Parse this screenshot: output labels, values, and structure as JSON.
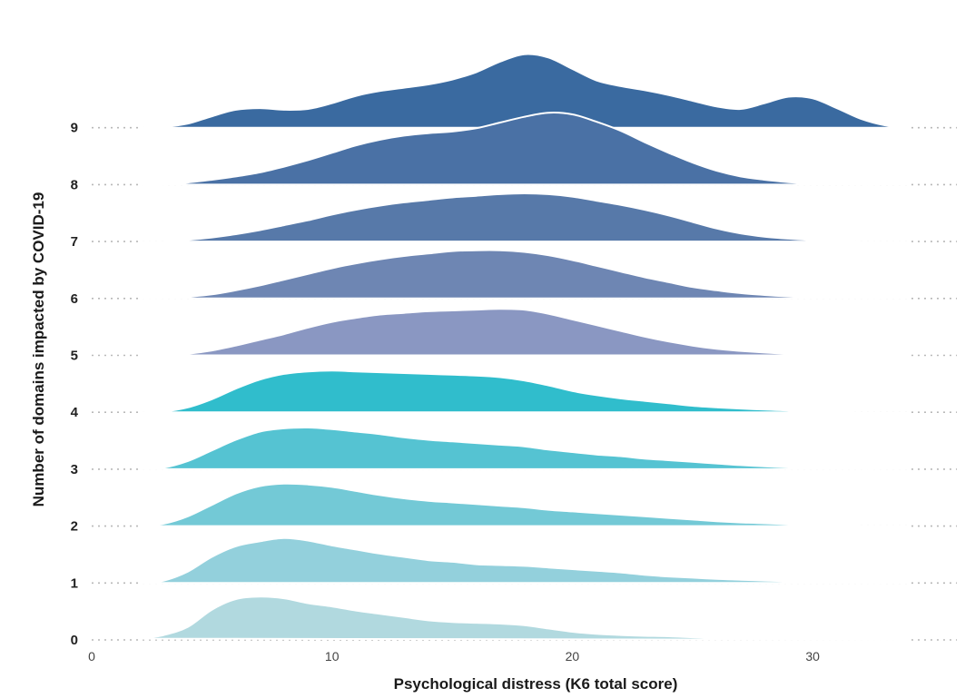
{
  "chart_data": {
    "type": "ridgeline",
    "title": "",
    "xlabel": "Psychological distress (K6 total score)",
    "ylabel": "Number of domains impacted by COVID-19",
    "xlim": [
      0,
      36
    ],
    "x_ticks": [
      0,
      10,
      20,
      30
    ],
    "grid": false,
    "legend": "none",
    "x": [
      2,
      3,
      4,
      5,
      6,
      7,
      8,
      9,
      10,
      11,
      12,
      13,
      14,
      15,
      16,
      17,
      18,
      19,
      20,
      21,
      22,
      23,
      24,
      25,
      26,
      27,
      28,
      29,
      30,
      31,
      32,
      33,
      34
    ],
    "series": [
      {
        "name": "0",
        "color": "#b1d9df",
        "values": [
          0.15,
          0.6,
          1.6,
          3.7,
          5.0,
          5.3,
          5.1,
          4.5,
          4.1,
          3.6,
          3.2,
          2.8,
          2.4,
          2.2,
          2.1,
          2.0,
          1.8,
          1.4,
          1.0,
          0.75,
          0.6,
          0.5,
          0.45,
          0.32,
          0.22,
          0.12,
          0.08,
          0.12,
          0.15,
          0.1,
          0.05,
          0.02,
          0
        ]
      },
      {
        "name": "1",
        "color": "#93d0dc",
        "values": [
          0,
          0.3,
          1.4,
          3.2,
          4.5,
          5.1,
          5.5,
          5.2,
          4.6,
          4.1,
          3.6,
          3.2,
          2.8,
          2.6,
          2.3,
          2.2,
          2.1,
          1.9,
          1.7,
          1.5,
          1.3,
          1.0,
          0.8,
          0.65,
          0.5,
          0.4,
          0.3,
          0.2,
          0.12,
          0.06,
          0,
          0,
          0
        ]
      },
      {
        "name": "2",
        "color": "#73c9d6",
        "values": [
          0,
          0.3,
          1.2,
          2.6,
          4.0,
          4.9,
          5.2,
          5.1,
          4.8,
          4.3,
          3.8,
          3.4,
          3.1,
          2.9,
          2.7,
          2.5,
          2.3,
          2.0,
          1.8,
          1.6,
          1.4,
          1.2,
          1.0,
          0.8,
          0.6,
          0.45,
          0.35,
          0.22,
          0.12,
          0.05,
          0,
          0,
          0
        ]
      },
      {
        "name": "3",
        "color": "#55c3d2",
        "values": [
          0,
          0.2,
          1.0,
          2.3,
          3.6,
          4.6,
          5.0,
          5.1,
          4.9,
          4.6,
          4.3,
          3.9,
          3.6,
          3.4,
          3.2,
          3.0,
          2.8,
          2.4,
          2.1,
          1.8,
          1.6,
          1.3,
          1.1,
          0.9,
          0.7,
          0.5,
          0.35,
          0.22,
          0.12,
          0.05,
          0,
          0,
          0
        ]
      },
      {
        "name": "4",
        "color": "#30bdcc",
        "values": [
          0,
          0.1,
          0.6,
          1.6,
          2.9,
          4.0,
          4.7,
          5.0,
          5.1,
          5.0,
          4.9,
          4.8,
          4.7,
          4.6,
          4.5,
          4.3,
          3.9,
          3.3,
          2.6,
          2.1,
          1.7,
          1.4,
          1.1,
          0.8,
          0.6,
          0.45,
          0.32,
          0.22,
          0.12,
          0.05,
          0,
          0,
          0
        ]
      },
      {
        "name": "5",
        "color": "#8a97c2",
        "values": [
          0,
          0,
          0.2,
          0.6,
          1.2,
          1.9,
          2.6,
          3.4,
          4.1,
          4.6,
          5.0,
          5.2,
          5.4,
          5.5,
          5.6,
          5.7,
          5.6,
          5.1,
          4.4,
          3.7,
          3.0,
          2.3,
          1.7,
          1.2,
          0.8,
          0.55,
          0.35,
          0.2,
          0.1,
          0.05,
          0,
          0,
          0
        ]
      },
      {
        "name": "6",
        "color": "#6e86b3",
        "values": [
          0,
          0,
          0.2,
          0.5,
          1.0,
          1.6,
          2.3,
          3.0,
          3.7,
          4.3,
          4.8,
          5.2,
          5.5,
          5.8,
          5.9,
          5.9,
          5.7,
          5.3,
          4.7,
          4.0,
          3.3,
          2.6,
          2.0,
          1.4,
          1.0,
          0.65,
          0.42,
          0.25,
          0.12,
          0.05,
          0,
          0,
          0
        ]
      },
      {
        "name": "7",
        "color": "#5779a9",
        "values": [
          0,
          0,
          0.2,
          0.5,
          0.9,
          1.4,
          2.0,
          2.6,
          3.3,
          3.9,
          4.4,
          4.8,
          5.1,
          5.4,
          5.6,
          5.8,
          5.9,
          5.8,
          5.5,
          5.0,
          4.5,
          3.9,
          3.2,
          2.4,
          1.6,
          1.0,
          0.6,
          0.35,
          0.18,
          0.08,
          0,
          0,
          0
        ]
      },
      {
        "name": "8",
        "color": "#4a71a5",
        "values": [
          0,
          0,
          0.25,
          0.6,
          1.0,
          1.5,
          2.2,
          3.0,
          3.9,
          4.8,
          5.5,
          6.0,
          6.3,
          6.5,
          6.9,
          7.6,
          8.3,
          8.8,
          8.6,
          7.7,
          6.6,
          5.2,
          3.9,
          2.7,
          1.7,
          1.0,
          0.6,
          0.3,
          0.15,
          0.05,
          0,
          0,
          0
        ]
      },
      {
        "name": "9",
        "color": "#3a6aa0",
        "values": [
          0,
          0.1,
          0.5,
          1.4,
          2.2,
          2.4,
          2.2,
          2.3,
          3.0,
          3.9,
          4.5,
          4.9,
          5.3,
          5.9,
          6.8,
          8.1,
          9.0,
          8.6,
          7.2,
          5.8,
          5.1,
          4.6,
          4.0,
          3.3,
          2.6,
          2.3,
          3.0,
          3.8,
          3.6,
          2.4,
          1.1,
          0.3,
          0
        ]
      }
    ]
  }
}
